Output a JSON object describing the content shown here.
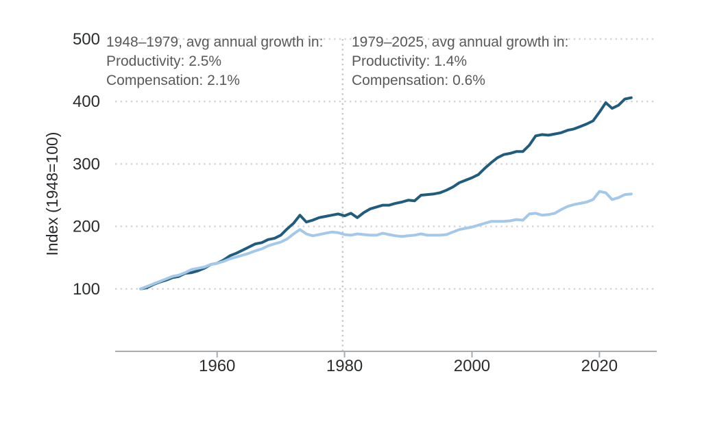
{
  "annotations": {
    "period1": {
      "title": "1948–1979, avg annual growth in:",
      "productivity": "Productivity: 2.5%",
      "compensation": "Compensation: 2.1%"
    },
    "period2": {
      "title": "1979–2025, avg annual growth in:",
      "productivity": "Productivity: 1.4%",
      "compensation": "Compensation: 0.6%"
    }
  },
  "chart_data": {
    "type": "line",
    "title": "",
    "xlabel": "",
    "ylabel": "Index (1948=100)",
    "xlim": [
      1944,
      2029
    ],
    "ylim": [
      0,
      500
    ],
    "xticks": [
      1960,
      1980,
      2000,
      2020
    ],
    "yticks": [
      100,
      200,
      300,
      400,
      500
    ],
    "grid": "dotted horizontal gridlines; dotted vertical divider at 1979; legend: none",
    "divider_year": 1979.7,
    "x": [
      1948,
      1949,
      1950,
      1951,
      1952,
      1953,
      1954,
      1955,
      1956,
      1957,
      1958,
      1959,
      1960,
      1961,
      1962,
      1963,
      1964,
      1965,
      1966,
      1967,
      1968,
      1969,
      1970,
      1971,
      1972,
      1973,
      1974,
      1975,
      1976,
      1977,
      1978,
      1979,
      1980,
      1981,
      1982,
      1983,
      1984,
      1985,
      1986,
      1987,
      1988,
      1989,
      1990,
      1991,
      1992,
      1993,
      1994,
      1995,
      1996,
      1997,
      1998,
      1999,
      2000,
      2001,
      2002,
      2003,
      2004,
      2005,
      2006,
      2007,
      2008,
      2009,
      2010,
      2011,
      2012,
      2013,
      2014,
      2015,
      2016,
      2017,
      2018,
      2019,
      2020,
      2021,
      2022,
      2023,
      2024,
      2025
    ],
    "series": [
      {
        "name": "Productivity",
        "color": "#205c7d",
        "values": [
          100,
          102,
          107,
          111,
          114,
          118,
          120,
          125,
          126,
          129,
          133,
          139,
          141,
          146,
          153,
          157,
          162,
          167,
          172,
          174,
          179,
          181,
          186,
          196,
          205,
          218,
          207,
          210,
          214,
          216,
          218,
          220,
          217,
          221,
          214,
          222,
          228,
          231,
          234,
          234,
          237,
          239,
          242,
          241,
          250,
          251,
          252,
          254,
          258,
          263,
          270,
          274,
          278,
          283,
          293,
          302,
          310,
          315,
          317,
          320,
          320,
          330,
          345,
          347,
          346,
          348,
          350,
          354,
          356,
          360,
          364,
          369,
          383,
          398,
          389,
          394,
          404,
          406
        ]
      },
      {
        "name": "Compensation",
        "color": "#a4c8e9",
        "values": [
          100,
          104,
          108,
          112,
          116,
          120,
          122,
          126,
          131,
          133,
          135,
          139,
          141,
          144,
          148,
          151,
          154,
          157,
          161,
          164,
          169,
          172,
          175,
          180,
          188,
          195,
          188,
          185,
          187,
          189,
          191,
          190,
          187,
          186,
          188,
          187,
          186,
          186,
          189,
          187,
          185,
          184,
          185,
          186,
          188,
          186,
          186,
          186,
          187,
          191,
          195,
          197,
          199,
          202,
          205,
          208,
          208,
          208,
          209,
          211,
          210,
          220,
          221,
          218,
          219,
          221,
          227,
          232,
          235,
          237,
          239,
          243,
          256,
          254,
          243,
          246,
          251,
          252
        ]
      }
    ],
    "style": {
      "grid_color": "#d3d4d5",
      "divider_color": "#c5c7c9",
      "axis_color": "#a8abad",
      "tick_text_color": "#2a2c2e",
      "annotation_text_color": "#58595b",
      "line_width": 4
    }
  }
}
